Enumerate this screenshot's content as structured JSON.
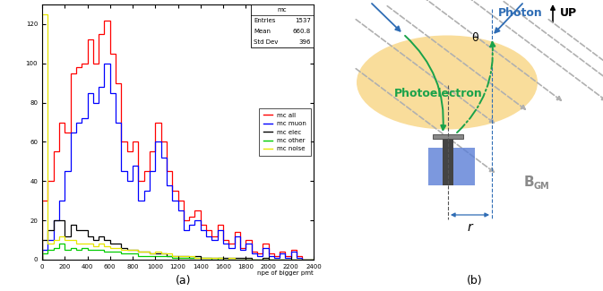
{
  "chart_data": {
    "type": "histogram",
    "xlabel": "npe of bigger pmt",
    "bins": [
      0,
      50,
      100,
      150,
      200,
      250,
      300,
      350,
      400,
      450,
      500,
      550,
      600,
      650,
      700,
      750,
      800,
      850,
      900,
      950,
      1000,
      1050,
      1100,
      1150,
      1200,
      1250,
      1300,
      1350,
      1400,
      1450,
      1500,
      1550,
      1600,
      1650,
      1700,
      1750,
      1800,
      1850,
      1900,
      1950,
      2000,
      2050,
      2100,
      2150,
      2200,
      2250,
      2300,
      2350,
      2400
    ],
    "series": [
      {
        "name": "mc all",
        "color": "#ff0000",
        "values": [
          30,
          40,
          55,
          70,
          65,
          95,
          98,
          100,
          112,
          100,
          115,
          122,
          105,
          90,
          60,
          55,
          60,
          40,
          45,
          55,
          70,
          60,
          45,
          35,
          30,
          20,
          22,
          25,
          18,
          15,
          12,
          18,
          10,
          8,
          14,
          6,
          10,
          4,
          3,
          8,
          3,
          2,
          4,
          2,
          5,
          2,
          0,
          0
        ]
      },
      {
        "name": "mc muon",
        "color": "#0000ff",
        "values": [
          5,
          10,
          20,
          30,
          45,
          65,
          70,
          72,
          85,
          80,
          88,
          100,
          85,
          70,
          45,
          40,
          48,
          30,
          35,
          45,
          60,
          52,
          38,
          30,
          25,
          15,
          18,
          20,
          15,
          12,
          10,
          15,
          8,
          6,
          12,
          5,
          8,
          3,
          2,
          6,
          2,
          1,
          3,
          1,
          4,
          1,
          0,
          0
        ]
      },
      {
        "name": "mc elec",
        "color": "#000000",
        "values": [
          10,
          15,
          20,
          20,
          12,
          18,
          15,
          15,
          12,
          10,
          12,
          10,
          8,
          8,
          6,
          5,
          5,
          4,
          4,
          3,
          3,
          3,
          2,
          2,
          2,
          2,
          1,
          2,
          1,
          1,
          1,
          1,
          1,
          1,
          1,
          1,
          1,
          0,
          0,
          1,
          0,
          0,
          0,
          0,
          0,
          0,
          0,
          0
        ]
      },
      {
        "name": "mc other",
        "color": "#00cc00",
        "values": [
          3,
          5,
          6,
          8,
          5,
          6,
          5,
          6,
          5,
          5,
          5,
          4,
          4,
          4,
          3,
          3,
          3,
          2,
          2,
          2,
          2,
          2,
          2,
          1,
          1,
          1,
          1,
          1,
          1,
          1,
          0,
          1,
          0,
          0,
          0,
          0,
          0,
          0,
          0,
          0,
          0,
          0,
          0,
          0,
          0,
          0,
          0,
          0
        ]
      },
      {
        "name": "mc noise",
        "color": "#e6e600",
        "values": [
          125,
          8,
          10,
          12,
          10,
          10,
          8,
          8,
          8,
          7,
          8,
          7,
          6,
          6,
          5,
          5,
          5,
          4,
          4,
          3,
          4,
          3,
          3,
          2,
          2,
          2,
          2,
          1,
          1,
          1,
          1,
          1,
          0,
          1,
          0,
          0,
          0,
          0,
          0,
          0,
          0,
          0,
          0,
          0,
          0,
          0,
          0,
          0
        ]
      }
    ],
    "xlim": [
      0,
      2400
    ],
    "xticks": [
      0,
      200,
      400,
      600,
      800,
      1000,
      1200,
      1400,
      1600,
      1800,
      2000,
      2200,
      2400
    ],
    "ylim": [
      0,
      130
    ],
    "yticks": [
      0,
      20,
      40,
      60,
      80,
      100,
      120
    ],
    "legend": "center right",
    "stats": {
      "title": "mc",
      "rows": [
        [
          "Entries",
          1537
        ],
        [
          "Mean",
          660.8
        ],
        [
          "Std Dev",
          396
        ]
      ]
    }
  },
  "diagram": {
    "labels": {
      "photon": "Photon",
      "photoelectron": "Photoelectron",
      "theta": "θ",
      "r": "r",
      "up": "UP",
      "field": "B",
      "field_subscript": "GM"
    }
  },
  "panel_labels": [
    "(a)",
    "(b)"
  ]
}
